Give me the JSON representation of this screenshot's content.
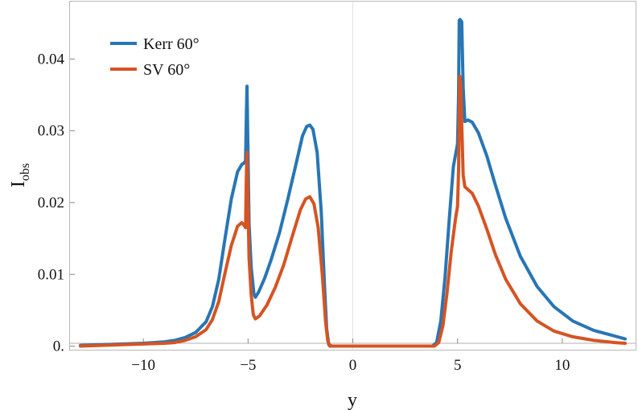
{
  "chart_data": {
    "type": "line",
    "title": "",
    "xlabel": "y",
    "ylabel_main": "I",
    "ylabel_sub": "obs",
    "xlim": [
      -13,
      13
    ],
    "ylim": [
      -0.0005,
      0.048
    ],
    "x_ticks": [
      {
        "value": -10,
        "label": "−10"
      },
      {
        "value": -5,
        "label": "−5"
      },
      {
        "value": 0,
        "label": "0"
      },
      {
        "value": 5,
        "label": "5"
      },
      {
        "value": 10,
        "label": "10"
      }
    ],
    "y_ticks": [
      {
        "value": 0,
        "label": "0."
      },
      {
        "value": 0.01,
        "label": "0.01"
      },
      {
        "value": 0.02,
        "label": "0.02"
      },
      {
        "value": 0.03,
        "label": "0.03"
      },
      {
        "value": 0.04,
        "label": "0.04"
      }
    ],
    "zero_line_x": 0,
    "legend_position": "top-left",
    "series": [
      {
        "name": "Kerr 60°",
        "color": "#2876b4",
        "points": [
          [
            -13,
            0.0001
          ],
          [
            -12,
            0.0002
          ],
          [
            -11,
            0.0003
          ],
          [
            -10,
            0.0004
          ],
          [
            -9,
            0.0006
          ],
          [
            -8.5,
            0.0008
          ],
          [
            -8,
            0.0012
          ],
          [
            -7.5,
            0.0019
          ],
          [
            -7,
            0.0034
          ],
          [
            -6.7,
            0.0055
          ],
          [
            -6.4,
            0.0093
          ],
          [
            -6.1,
            0.015
          ],
          [
            -5.8,
            0.0205
          ],
          [
            -5.5,
            0.0243
          ],
          [
            -5.3,
            0.0253
          ],
          [
            -5.2,
            0.0255
          ],
          [
            -5.12,
            0.0258
          ],
          [
            -5.08,
            0.032
          ],
          [
            -5.05,
            0.0362
          ],
          [
            -5.0,
            0.0265
          ],
          [
            -4.95,
            0.017
          ],
          [
            -4.85,
            0.011
          ],
          [
            -4.72,
            0.0073
          ],
          [
            -4.65,
            0.0068
          ],
          [
            -4.5,
            0.0075
          ],
          [
            -4.2,
            0.0095
          ],
          [
            -3.9,
            0.012
          ],
          [
            -3.5,
            0.0158
          ],
          [
            -3.1,
            0.0205
          ],
          [
            -2.7,
            0.0255
          ],
          [
            -2.4,
            0.0293
          ],
          [
            -2.2,
            0.0306
          ],
          [
            -2.05,
            0.0308
          ],
          [
            -1.9,
            0.0302
          ],
          [
            -1.7,
            0.027
          ],
          [
            -1.5,
            0.0185
          ],
          [
            -1.35,
            0.0085
          ],
          [
            -1.25,
            0.0025
          ],
          [
            -1.15,
            0.0002
          ],
          [
            -1.0,
            0.0
          ],
          [
            3.8,
            0.0
          ],
          [
            4.0,
            0.0005
          ],
          [
            4.2,
            0.0035
          ],
          [
            4.4,
            0.0095
          ],
          [
            4.6,
            0.0175
          ],
          [
            4.8,
            0.025
          ],
          [
            5.0,
            0.0282
          ],
          [
            5.05,
            0.035
          ],
          [
            5.08,
            0.0454
          ],
          [
            5.12,
            0.0455
          ],
          [
            5.2,
            0.0452
          ],
          [
            5.27,
            0.036
          ],
          [
            5.35,
            0.0313
          ],
          [
            5.5,
            0.0315
          ],
          [
            5.7,
            0.0312
          ],
          [
            6.0,
            0.0297
          ],
          [
            6.4,
            0.0265
          ],
          [
            6.8,
            0.0225
          ],
          [
            7.3,
            0.0178
          ],
          [
            8.0,
            0.0125
          ],
          [
            8.8,
            0.0083
          ],
          [
            9.6,
            0.0055
          ],
          [
            10.5,
            0.0035
          ],
          [
            11.5,
            0.0022
          ],
          [
            12.5,
            0.0014
          ],
          [
            13,
            0.001
          ]
        ]
      },
      {
        "name": "SV 60°",
        "color": "#d55422",
        "points": [
          [
            -13,
            0.0
          ],
          [
            -12,
            0.0001
          ],
          [
            -11,
            0.0002
          ],
          [
            -10,
            0.0003
          ],
          [
            -9,
            0.0004
          ],
          [
            -8.5,
            0.0005
          ],
          [
            -8,
            0.0008
          ],
          [
            -7.5,
            0.0013
          ],
          [
            -7,
            0.0023
          ],
          [
            -6.7,
            0.0037
          ],
          [
            -6.4,
            0.0062
          ],
          [
            -6.1,
            0.0102
          ],
          [
            -5.8,
            0.014
          ],
          [
            -5.5,
            0.0167
          ],
          [
            -5.3,
            0.0172
          ],
          [
            -5.18,
            0.0168
          ],
          [
            -5.12,
            0.0165
          ],
          [
            -5.08,
            0.0235
          ],
          [
            -5.05,
            0.027
          ],
          [
            -5.0,
            0.0195
          ],
          [
            -4.95,
            0.0122
          ],
          [
            -4.85,
            0.0072
          ],
          [
            -4.75,
            0.0044
          ],
          [
            -4.65,
            0.0038
          ],
          [
            -4.45,
            0.0042
          ],
          [
            -4.1,
            0.0057
          ],
          [
            -3.7,
            0.0082
          ],
          [
            -3.3,
            0.0113
          ],
          [
            -2.9,
            0.0152
          ],
          [
            -2.5,
            0.019
          ],
          [
            -2.25,
            0.0205
          ],
          [
            -2.05,
            0.0208
          ],
          [
            -1.85,
            0.0198
          ],
          [
            -1.65,
            0.0165
          ],
          [
            -1.45,
            0.0098
          ],
          [
            -1.3,
            0.0035
          ],
          [
            -1.2,
            0.0008
          ],
          [
            -1.1,
            0.0
          ],
          [
            3.9,
            0.0
          ],
          [
            4.1,
            0.0005
          ],
          [
            4.3,
            0.0028
          ],
          [
            4.5,
            0.0075
          ],
          [
            4.7,
            0.0132
          ],
          [
            4.9,
            0.0177
          ],
          [
            5.0,
            0.0195
          ],
          [
            5.05,
            0.0245
          ],
          [
            5.1,
            0.0376
          ],
          [
            5.15,
            0.0365
          ],
          [
            5.2,
            0.031
          ],
          [
            5.27,
            0.0238
          ],
          [
            5.35,
            0.0222
          ],
          [
            5.5,
            0.0218
          ],
          [
            5.7,
            0.0213
          ],
          [
            6.0,
            0.0195
          ],
          [
            6.4,
            0.0163
          ],
          [
            6.8,
            0.0128
          ],
          [
            7.3,
            0.0093
          ],
          [
            8.0,
            0.0059
          ],
          [
            8.8,
            0.0035
          ],
          [
            9.6,
            0.0021
          ],
          [
            10.5,
            0.0013
          ],
          [
            11.5,
            0.0008
          ],
          [
            12.5,
            0.0005
          ],
          [
            13,
            0.0004
          ]
        ]
      }
    ]
  }
}
